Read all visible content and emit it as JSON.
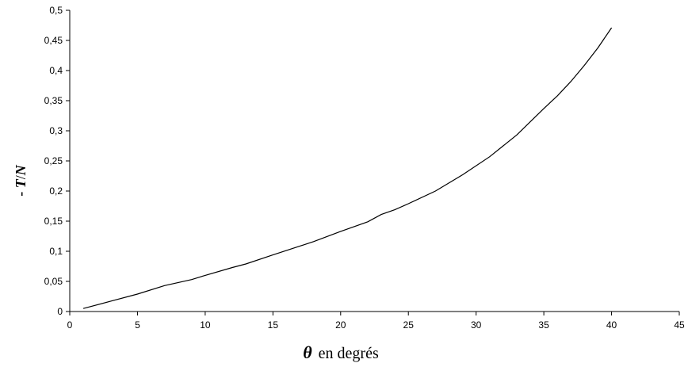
{
  "chart_data": {
    "type": "line",
    "title": "",
    "xlabel_symbol": "θ",
    "xlabel_text": "en degrés",
    "ylabel_prefix": "- ",
    "ylabel_T": "T",
    "ylabel_slash": "/",
    "ylabel_N": "N",
    "xlim": [
      0,
      45
    ],
    "ylim": [
      0,
      0.5
    ],
    "grid": false,
    "x_ticks": [
      0,
      5,
      10,
      15,
      20,
      25,
      30,
      35,
      40,
      45
    ],
    "x_tick_labels": [
      "0",
      "5",
      "10",
      "15",
      "20",
      "25",
      "30",
      "35",
      "40",
      "45"
    ],
    "y_ticks": [
      0,
      0.05,
      0.1,
      0.15,
      0.2,
      0.25,
      0.3,
      0.35,
      0.4,
      0.45,
      0.5
    ],
    "y_tick_labels": [
      "0",
      "0,05",
      "0,1",
      "0,15",
      "0,2",
      "0,25",
      "0,3",
      "0,35",
      "0,4",
      "0,45",
      "0,5"
    ],
    "series": [
      {
        "x": [
          1,
          3,
          5,
          7,
          9,
          10,
          12,
          13,
          15,
          18,
          20,
          22,
          23,
          24,
          25,
          27,
          29,
          31,
          33,
          35,
          36,
          37,
          38,
          39,
          40
        ],
        "y": [
          0.005,
          0.017,
          0.029,
          0.043,
          0.053,
          0.06,
          0.073,
          0.079,
          0.094,
          0.116,
          0.133,
          0.149,
          0.161,
          0.169,
          0.179,
          0.2,
          0.227,
          0.257,
          0.293,
          0.337,
          0.358,
          0.382,
          0.409,
          0.438,
          0.471
        ]
      }
    ]
  }
}
